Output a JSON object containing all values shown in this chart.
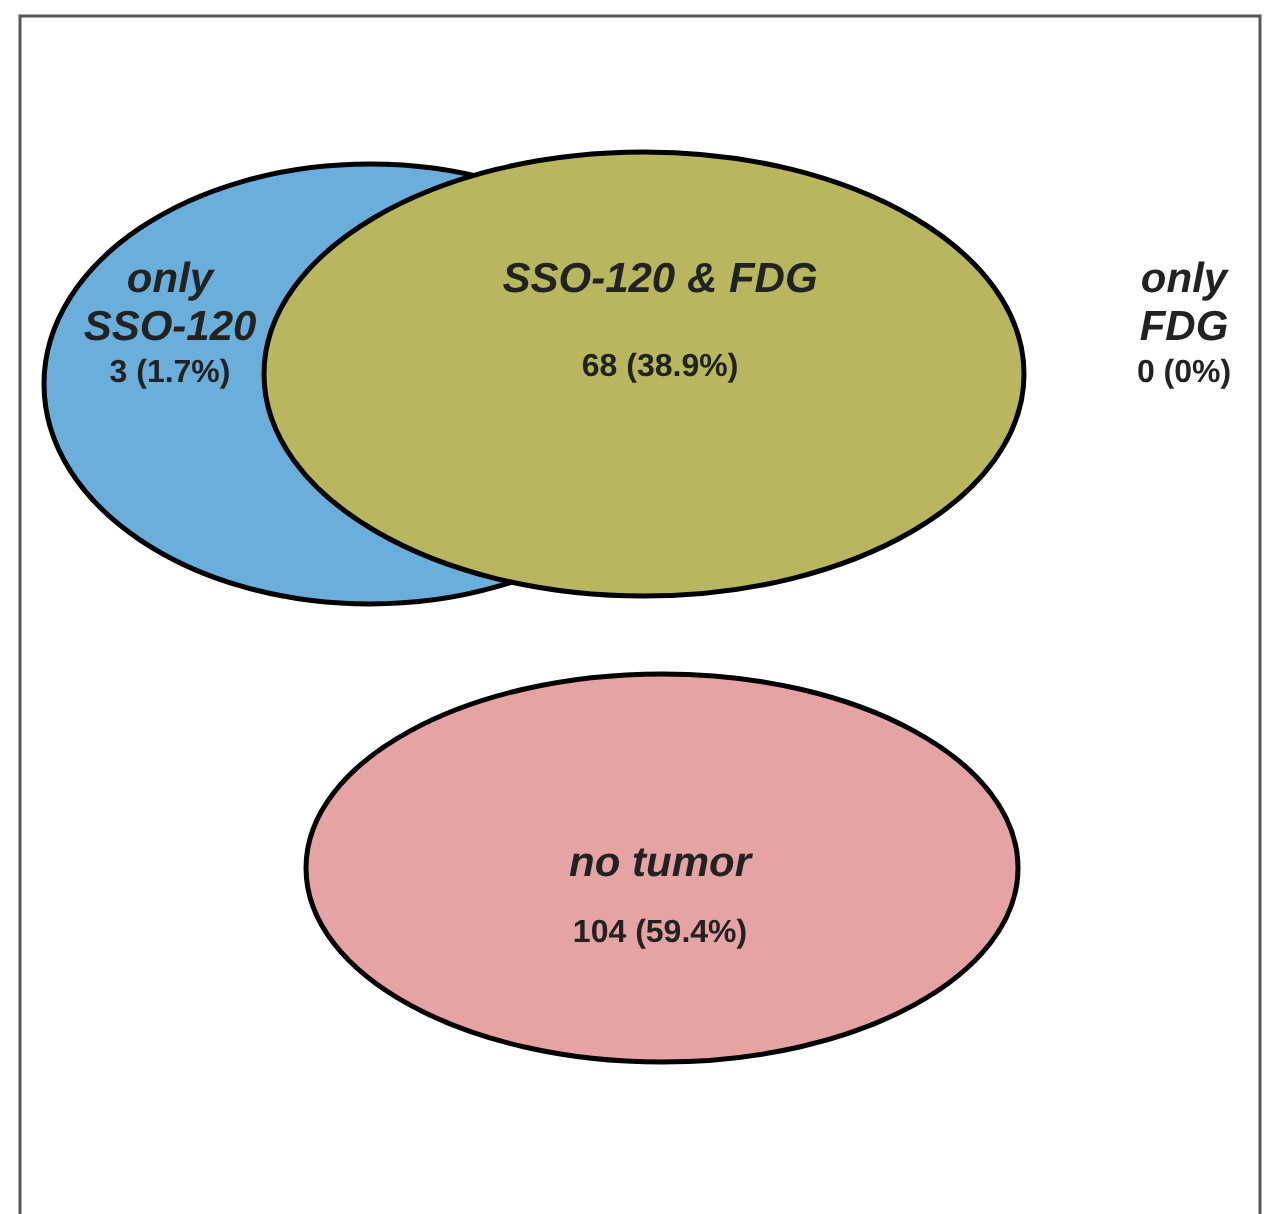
{
  "chart_data": {
    "type": "other",
    "categories": [
      "only SSO-120",
      "SSO-120 & FDG",
      "only FDG",
      "no tumor"
    ],
    "values": [
      3,
      68,
      0,
      104
    ],
    "value_labels": [
      "3 (1.7%)",
      "68 (38.9%)",
      "0 (0%)",
      "104 (59.4%)"
    ],
    "colors": [
      "#6aaedc",
      "#b8b65e",
      null,
      "#e6a3a3"
    ]
  }
}
